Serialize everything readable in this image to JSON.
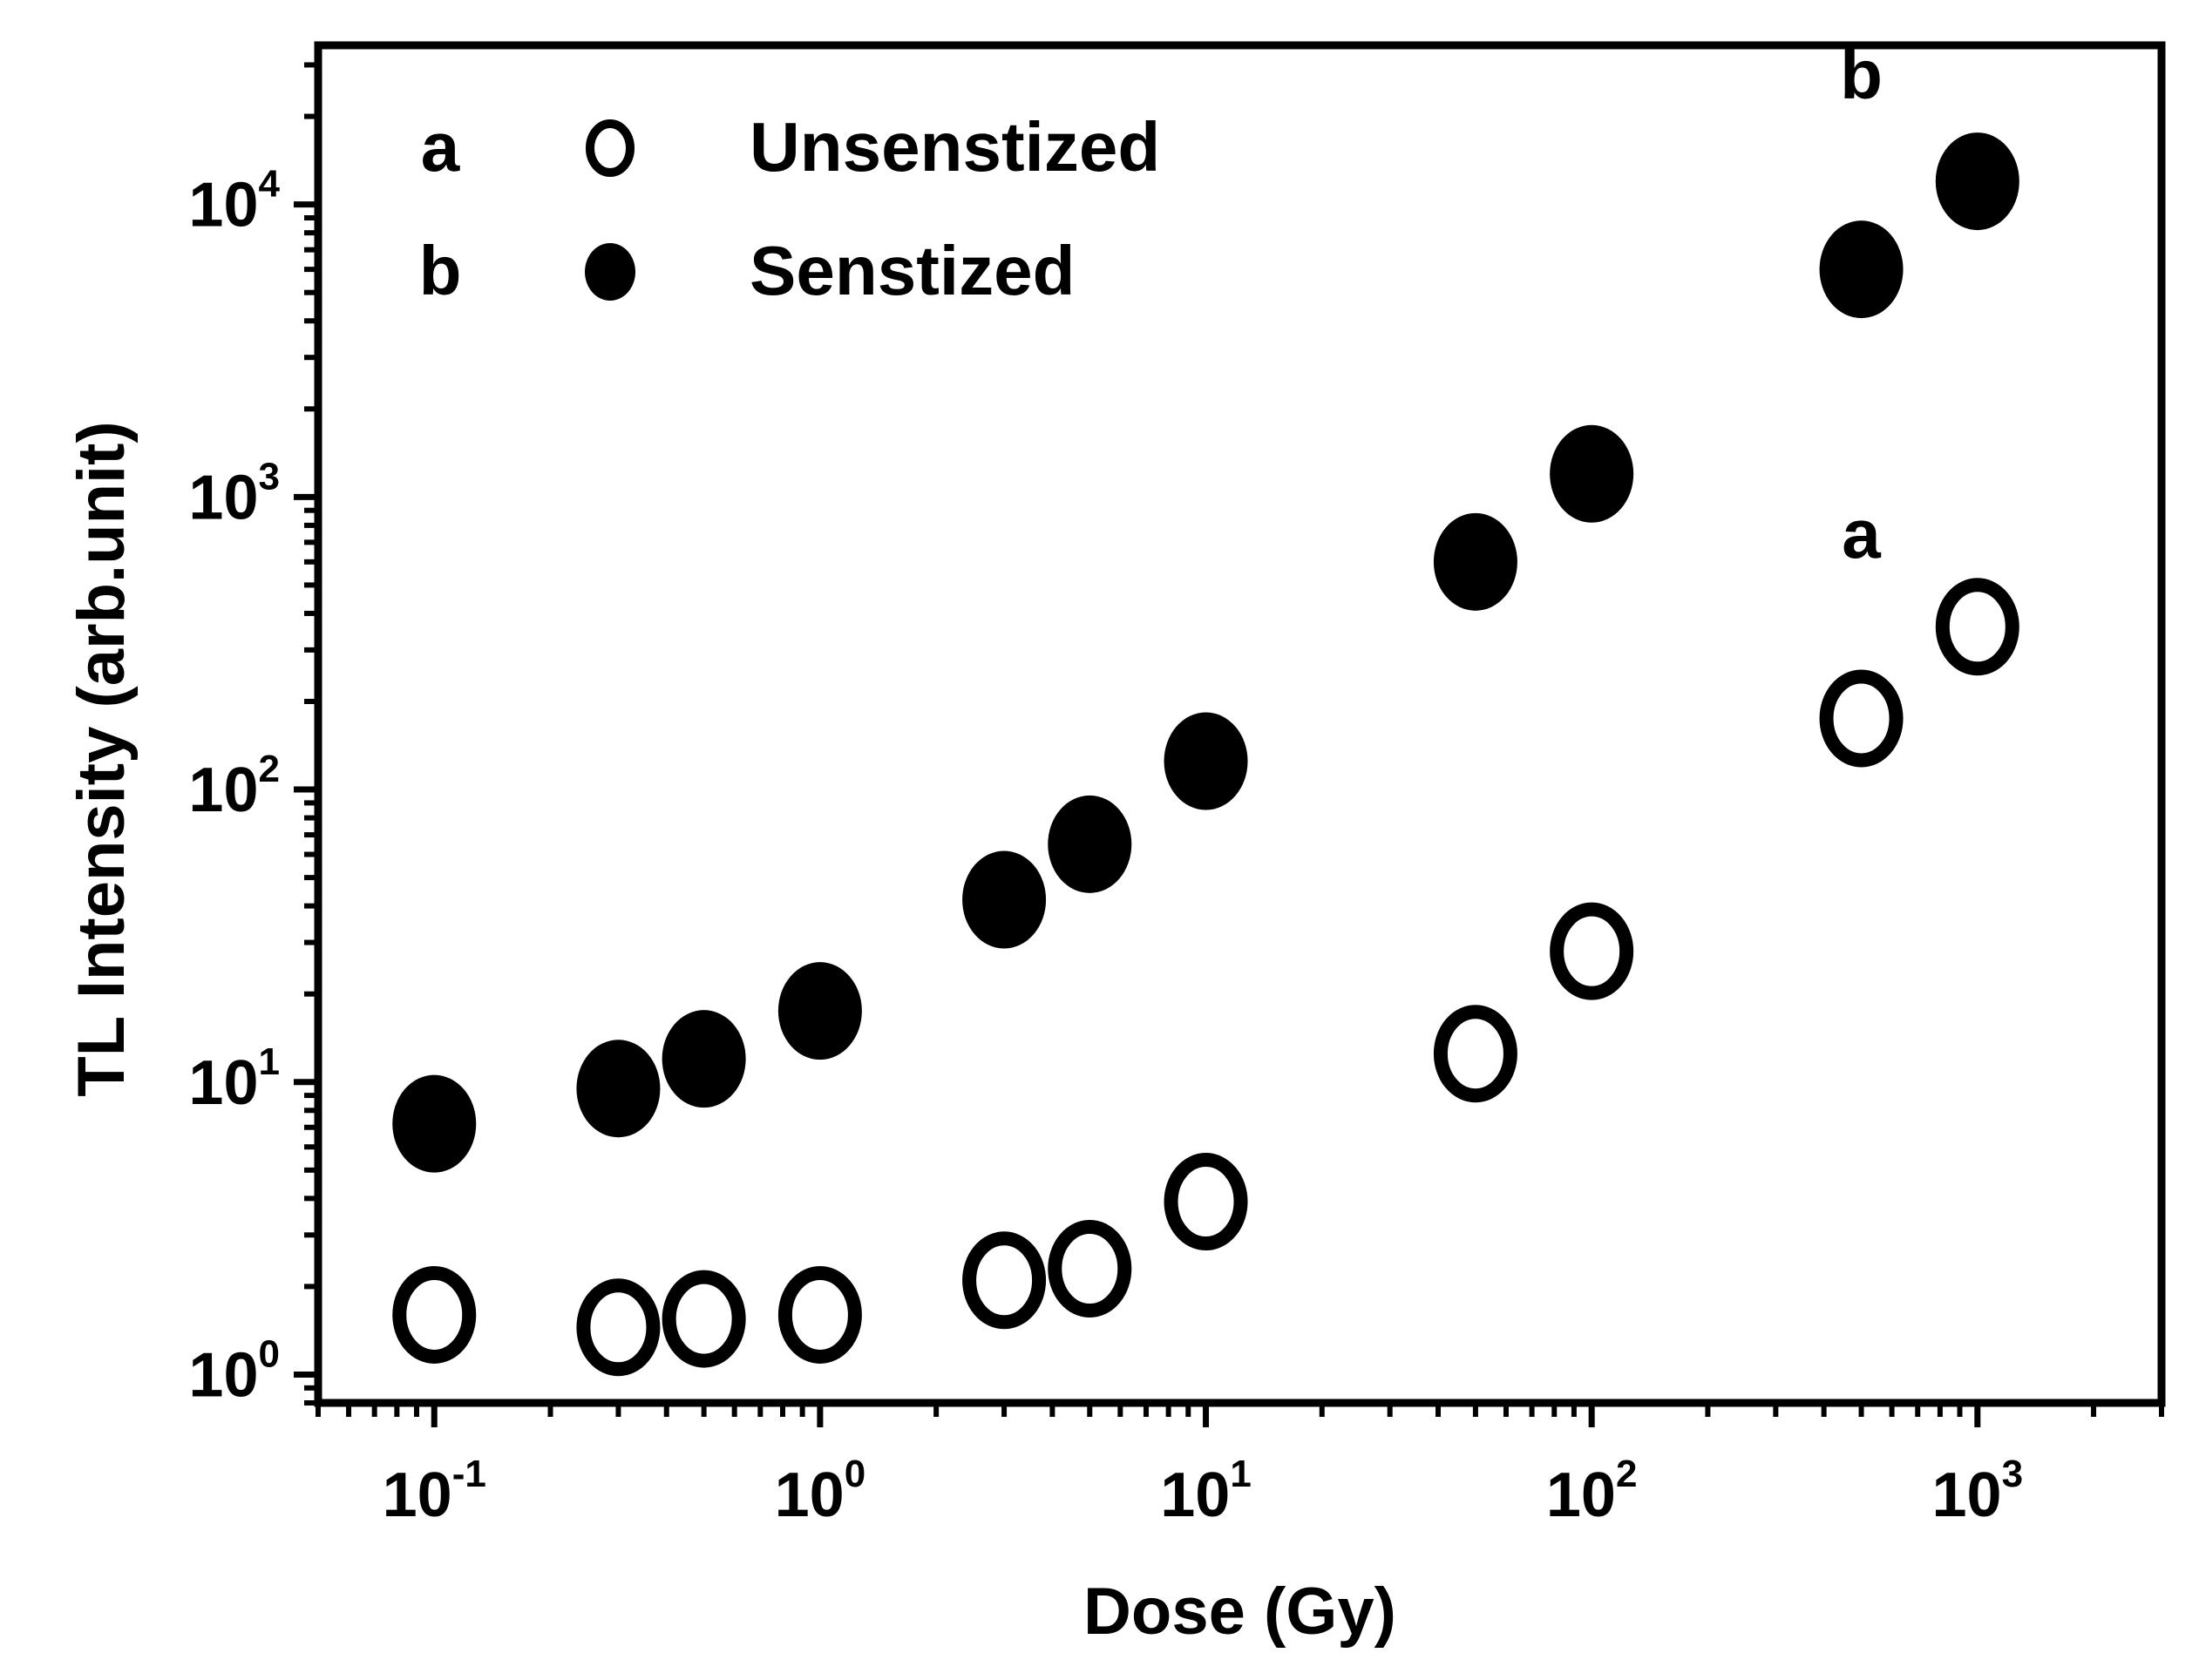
{
  "chart_data": {
    "type": "scatter",
    "title": "",
    "xlabel": "Dose (Gy)",
    "ylabel": "TL Intensity (arb.unit)",
    "x_scale": "log",
    "y_scale": "log",
    "xlim": [
      0.05,
      3000
    ],
    "ylim": [
      0.8,
      35000
    ],
    "x_ticks": [
      {
        "value": 0.1,
        "base": "10",
        "exp": "-1"
      },
      {
        "value": 1,
        "base": "10",
        "exp": "0"
      },
      {
        "value": 10,
        "base": "10",
        "exp": "1"
      },
      {
        "value": 100,
        "base": "10",
        "exp": "2"
      },
      {
        "value": 1000,
        "base": "10",
        "exp": "3"
      }
    ],
    "y_ticks": [
      {
        "value": 1,
        "base": "10",
        "exp": "0"
      },
      {
        "value": 10,
        "base": "10",
        "exp": "1"
      },
      {
        "value": 100,
        "base": "10",
        "exp": "2"
      },
      {
        "value": 1000,
        "base": "10",
        "exp": "3"
      },
      {
        "value": 10000,
        "base": "10",
        "exp": "4"
      }
    ],
    "grid": false,
    "legend_position": "top-left",
    "series": [
      {
        "id": "a",
        "name": "Unsenstized",
        "marker": "open-circle",
        "color": "#000000",
        "x": [
          0.1,
          0.3,
          0.5,
          1,
          3,
          5,
          10,
          50,
          100,
          500,
          1000
        ],
        "y": [
          1.6,
          1.45,
          1.55,
          1.6,
          2.1,
          2.3,
          3.9,
          12.5,
          28,
          175,
          360
        ]
      },
      {
        "id": "b",
        "name": "Senstized",
        "marker": "filled-circle",
        "color": "#000000",
        "x": [
          0.1,
          0.3,
          0.5,
          1,
          3,
          5,
          10,
          50,
          100,
          500,
          1000
        ],
        "y": [
          7.2,
          9.5,
          12,
          17.5,
          42,
          65,
          125,
          600,
          1200,
          6000,
          12000
        ]
      }
    ],
    "annotations": [
      {
        "text": "b",
        "x": 500,
        "y": 23000
      },
      {
        "text": "a",
        "x": 500,
        "y": 620
      }
    ]
  }
}
